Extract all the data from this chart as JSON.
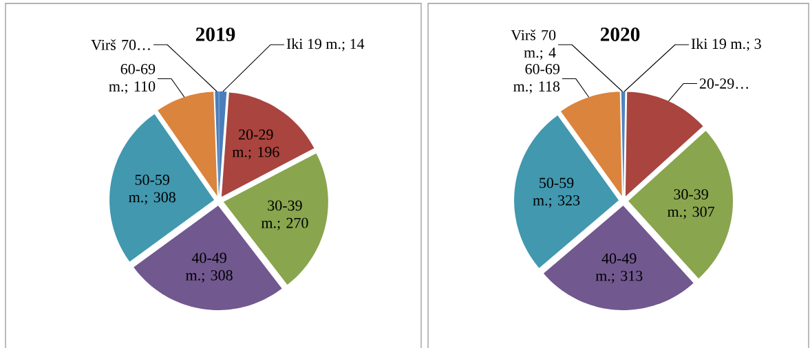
{
  "chart_data": [
    {
      "type": "pie",
      "title": "2019",
      "categories": [
        "Iki 19 m.; 14",
        "20-29 m.; 196",
        "30-39 m.; 270",
        "40-49 m.; 308",
        "50-59 m.; 308",
        "60-69 m.; 110",
        "Virš 70…"
      ],
      "values": [
        14,
        196,
        270,
        308,
        308,
        110,
        7
      ],
      "colors": [
        "#4a7ebb",
        "#a9443f",
        "#89a54e",
        "#71588f",
        "#4198af",
        "#db843d",
        "#4a7ebb"
      ]
    },
    {
      "type": "pie",
      "title": "2020",
      "categories": [
        "Iki 19 m.; 3",
        "20-29…",
        "30-39 m.; 307",
        "40-49 m.; 313",
        "50-59 m.; 323",
        "60-69 m.; 118",
        "Virš 70 m.; 4"
      ],
      "values": [
        3,
        160,
        307,
        313,
        323,
        118,
        4
      ],
      "colors": [
        "#4a7ebb",
        "#a9443f",
        "#89a54e",
        "#71588f",
        "#4198af",
        "#db843d",
        "#4a7ebb"
      ]
    }
  ]
}
